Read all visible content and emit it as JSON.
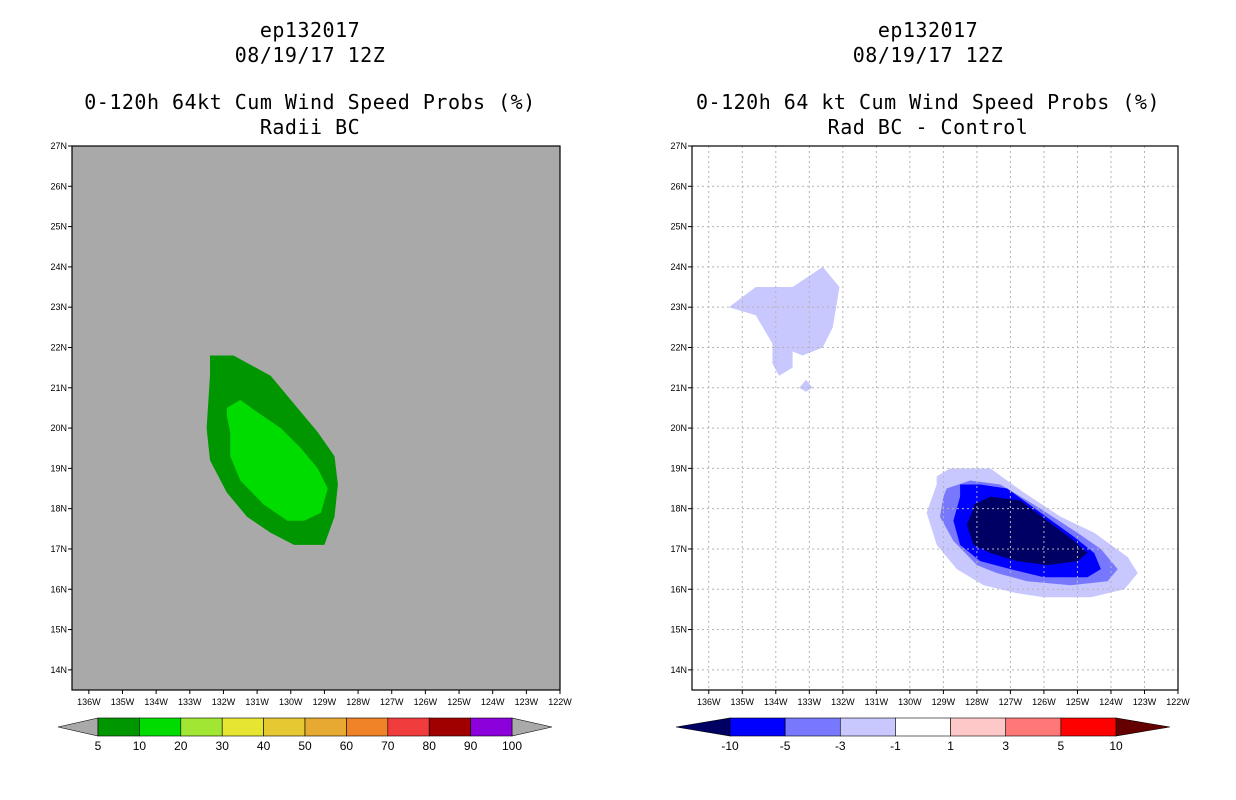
{
  "left": {
    "title1": "ep132017",
    "title2": "08/19/17 12Z",
    "title3": "0-120h 64kt Cum Wind Speed Probs (%)",
    "title4": "Radii BC"
  },
  "right": {
    "title1": "ep132017",
    "title2": "08/19/17 12Z",
    "title3": "0-120h 64 kt Cum Wind Speed Probs (%)",
    "title4": "Rad BC - Control"
  },
  "colors": {
    "left_background": "#a9a9a9",
    "green_dark": "#009600",
    "green_light": "#00dc00",
    "blue_light": "#c8c8ff",
    "blue_mid": "#7878ff",
    "blue": "#0000ff",
    "navy": "#000064"
  },
  "chart_data": [
    {
      "type": "heatmap",
      "title": "0-120h 64kt Cum Wind Speed Probs (%) - Radii BC",
      "x_ticks": [
        "136W",
        "135W",
        "134W",
        "133W",
        "132W",
        "131W",
        "130W",
        "129W",
        "128W",
        "127W",
        "126W",
        "125W",
        "124W",
        "123W",
        "122W"
      ],
      "y_ticks": [
        "14N",
        "15N",
        "16N",
        "17N",
        "18N",
        "19N",
        "20N",
        "21N",
        "22N",
        "23N",
        "24N",
        "25N",
        "26N",
        "27N"
      ],
      "xlim": [
        -136.5,
        -122
      ],
      "ylim": [
        13.5,
        27
      ],
      "grid": false,
      "colorbar": {
        "labels": [
          "5",
          "10",
          "20",
          "30",
          "40",
          "50",
          "60",
          "70",
          "80",
          "90",
          "100"
        ],
        "colors": [
          "#009600",
          "#00dc00",
          "#a0e632",
          "#e6e632",
          "#e6c832",
          "#e6aa32",
          "#f08228",
          "#f03c3c",
          "#a00000",
          "#8c00dc"
        ]
      },
      "contours": [
        {
          "level": "5-10%",
          "color": "#009600",
          "lon": [
            -132.4,
            -131.7,
            -130.6,
            -129.9,
            -129.2,
            -128.7,
            -128.6,
            -128.7,
            -129,
            -129.9,
            -130.6,
            -131.3,
            -131.9,
            -132.4,
            -132.5,
            -132.4
          ],
          "lat": [
            21.8,
            21.8,
            21.3,
            20.6,
            19.9,
            19.3,
            18.6,
            17.8,
            17.1,
            17.1,
            17.4,
            17.8,
            18.4,
            19.2,
            20.0,
            21.3
          ]
        },
        {
          "level": "10-20%",
          "color": "#00dc00",
          "lon": [
            -131.9,
            -131.5,
            -131.0,
            -130.3,
            -129.7,
            -129.2,
            -128.9,
            -129.1,
            -129.6,
            -130.1,
            -130.8,
            -131.5,
            -131.8,
            -131.8,
            -131.9
          ],
          "lat": [
            20.5,
            20.7,
            20.4,
            20.0,
            19.5,
            19.0,
            18.5,
            17.9,
            17.7,
            17.7,
            18.1,
            18.7,
            19.3,
            19.9,
            20.3
          ]
        }
      ]
    },
    {
      "type": "heatmap",
      "title": "0-120h 64 kt Cum Wind Speed Probs (%) - Rad BC - Control",
      "x_ticks": [
        "136W",
        "135W",
        "134W",
        "133W",
        "132W",
        "131W",
        "130W",
        "129W",
        "128W",
        "127W",
        "126W",
        "125W",
        "124W",
        "123W",
        "122W"
      ],
      "y_ticks": [
        "14N",
        "15N",
        "16N",
        "17N",
        "18N",
        "19N",
        "20N",
        "21N",
        "22N",
        "23N",
        "24N",
        "25N",
        "26N",
        "27N"
      ],
      "xlim": [
        -136.5,
        -122
      ],
      "ylim": [
        13.5,
        27
      ],
      "grid": true,
      "colorbar": {
        "labels": [
          "-10",
          "-5",
          "-3",
          "-1",
          "1",
          "3",
          "5",
          "10"
        ],
        "colors": [
          "#000064",
          "#0000ff",
          "#7878ff",
          "#c8c8ff",
          "#ffffff",
          "#ffc8c8",
          "#ff7878",
          "#ff0000",
          "#640000"
        ]
      },
      "contours": [
        {
          "level": "-3 to -1",
          "color": "#c8c8ff",
          "lon": [
            -135.4,
            -134.6,
            -133.5,
            -132.6,
            -132.1,
            -132.3,
            -132.6,
            -133.2,
            -133.5,
            -133.5,
            -133.9,
            -134.1,
            -134.1,
            -134.6,
            -135.4
          ],
          "lat": [
            23.0,
            23.5,
            23.5,
            24.0,
            23.5,
            22.5,
            22.0,
            21.8,
            21.9,
            21.5,
            21.3,
            21.6,
            22.1,
            22.8,
            23.0
          ]
        },
        {
          "level": "-3 to -1",
          "color": "#c8c8ff",
          "lon": [
            -133.1,
            -132.9,
            -133.1,
            -133.3,
            -133.1
          ],
          "lat": [
            21.2,
            21.0,
            20.9,
            21.0,
            21.2
          ]
        },
        {
          "level": "-3 to -1",
          "color": "#c8c8ff",
          "lon": [
            -129.2,
            -128.8,
            -127.6,
            -126.6,
            -125.5,
            -124.5,
            -123.5,
            -123.2,
            -123.6,
            -124.6,
            -126.0,
            -126.8,
            -127.8,
            -128.6,
            -129.2,
            -129.5,
            -129.2
          ],
          "lat": [
            18.8,
            19.0,
            19.0,
            18.4,
            17.8,
            17.4,
            16.8,
            16.4,
            16.0,
            15.8,
            15.8,
            15.9,
            16.1,
            16.5,
            17.1,
            17.9,
            18.6
          ]
        },
        {
          "level": "-5 to -3",
          "color": "#7878ff",
          "lon": [
            -128.9,
            -128.2,
            -127.3,
            -126.1,
            -125.0,
            -124.3,
            -123.8,
            -124.1,
            -125.2,
            -126.5,
            -127.4,
            -128.0,
            -128.7,
            -129.1,
            -129.0
          ],
          "lat": [
            18.5,
            18.7,
            18.6,
            18.0,
            17.4,
            17.0,
            16.5,
            16.2,
            16.1,
            16.2,
            16.4,
            16.6,
            17.2,
            17.8,
            18.3
          ]
        },
        {
          "level": "-10 to -5",
          "color": "#0000ff",
          "lon": [
            -128.5,
            -127.9,
            -127.1,
            -126.1,
            -125.1,
            -124.5,
            -124.3,
            -124.7,
            -126.0,
            -127.0,
            -127.9,
            -128.5,
            -128.7,
            -128.5
          ],
          "lat": [
            18.6,
            18.6,
            18.5,
            17.9,
            17.3,
            16.9,
            16.5,
            16.3,
            16.3,
            16.5,
            16.7,
            17.1,
            17.7,
            18.3
          ]
        },
        {
          "level": "< -10",
          "color": "#000064",
          "lon": [
            -128.1,
            -127.6,
            -126.7,
            -125.9,
            -125.1,
            -124.7,
            -125.0,
            -125.9,
            -126.8,
            -127.6,
            -128.1,
            -128.3,
            -128.1
          ],
          "lat": [
            18.1,
            18.3,
            18.2,
            17.7,
            17.2,
            16.9,
            16.7,
            16.6,
            16.7,
            16.9,
            17.1,
            17.6,
            18.0
          ]
        }
      ]
    }
  ]
}
